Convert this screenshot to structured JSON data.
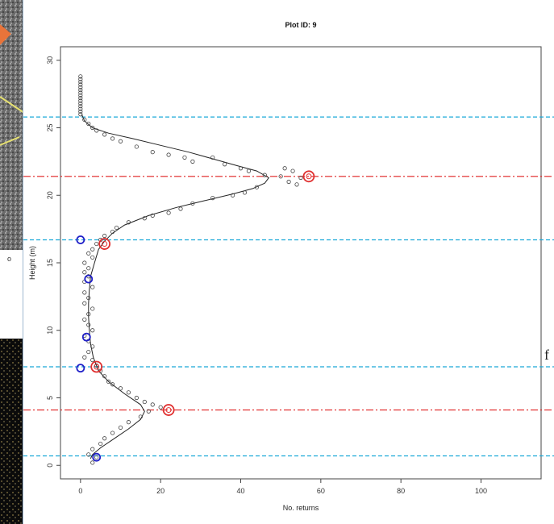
{
  "chart_data": {
    "type": "scatter",
    "title": "Plot ID: 9",
    "xlabel": "No. returns",
    "ylabel": "Height (m)",
    "xlim": [
      -5,
      115
    ],
    "ylim": [
      -1,
      31
    ],
    "xticks": [
      "0",
      "20",
      "40",
      "60",
      "80",
      "100"
    ],
    "yticks": [
      "0",
      "5",
      "10",
      "15",
      "20",
      "25",
      "30"
    ],
    "xtick_values": [
      0,
      20,
      40,
      60,
      80,
      100
    ],
    "ytick_values": [
      0,
      5,
      10,
      15,
      20,
      25,
      30
    ],
    "grid": false,
    "points": [
      [
        0,
        28.8
      ],
      [
        0,
        28.6
      ],
      [
        0,
        28.4
      ],
      [
        0,
        28.2
      ],
      [
        0,
        28.0
      ],
      [
        0,
        27.8
      ],
      [
        0,
        27.6
      ],
      [
        0,
        27.4
      ],
      [
        0,
        27.2
      ],
      [
        0,
        27.0
      ],
      [
        0,
        26.8
      ],
      [
        0,
        26.6
      ],
      [
        0,
        26.4
      ],
      [
        0,
        26.2
      ],
      [
        0,
        26.0
      ],
      [
        1,
        25.6
      ],
      [
        2,
        25.3
      ],
      [
        3,
        25.0
      ],
      [
        4,
        24.8
      ],
      [
        6,
        24.5
      ],
      [
        8,
        24.2
      ],
      [
        10,
        24.0
      ],
      [
        14,
        23.6
      ],
      [
        18,
        23.2
      ],
      [
        22,
        23.0
      ],
      [
        26,
        22.8
      ],
      [
        28,
        22.5
      ],
      [
        33,
        22.8
      ],
      [
        36,
        22.3
      ],
      [
        40,
        22.0
      ],
      [
        42,
        21.8
      ],
      [
        46,
        21.5
      ],
      [
        50,
        21.4
      ],
      [
        51,
        22.0
      ],
      [
        53,
        21.8
      ],
      [
        55,
        21.3
      ],
      [
        52,
        21.0
      ],
      [
        54,
        20.8
      ],
      [
        44,
        20.6
      ],
      [
        41,
        20.2
      ],
      [
        38,
        20.0
      ],
      [
        33,
        19.8
      ],
      [
        28,
        19.4
      ],
      [
        25,
        19.0
      ],
      [
        22,
        18.7
      ],
      [
        18,
        18.5
      ],
      [
        16,
        18.3
      ],
      [
        12,
        18.0
      ],
      [
        9,
        17.6
      ],
      [
        8,
        17.3
      ],
      [
        6,
        17.0
      ],
      [
        5,
        16.7
      ],
      [
        4,
        16.4
      ],
      [
        3,
        16.0
      ],
      [
        2,
        15.7
      ],
      [
        3,
        15.4
      ],
      [
        1,
        15.0
      ],
      [
        2,
        14.6
      ],
      [
        1,
        14.3
      ],
      [
        2,
        14.0
      ],
      [
        1,
        13.6
      ],
      [
        3,
        13.2
      ],
      [
        1,
        12.8
      ],
      [
        2,
        12.4
      ],
      [
        1,
        12.0
      ],
      [
        3,
        11.6
      ],
      [
        2,
        11.2
      ],
      [
        1,
        10.8
      ],
      [
        2,
        10.4
      ],
      [
        3,
        10.0
      ],
      [
        1,
        9.6
      ],
      [
        2,
        9.2
      ],
      [
        3,
        8.8
      ],
      [
        2,
        8.4
      ],
      [
        1,
        8.0
      ],
      [
        3,
        7.8
      ],
      [
        4,
        7.4
      ],
      [
        5,
        7.0
      ],
      [
        6,
        6.6
      ],
      [
        7,
        6.2
      ],
      [
        8,
        6.0
      ],
      [
        10,
        5.7
      ],
      [
        12,
        5.4
      ],
      [
        14,
        5.0
      ],
      [
        16,
        4.7
      ],
      [
        18,
        4.5
      ],
      [
        20,
        4.3
      ],
      [
        17,
        4.0
      ],
      [
        15,
        3.6
      ],
      [
        12,
        3.2
      ],
      [
        10,
        2.8
      ],
      [
        8,
        2.4
      ],
      [
        6,
        2.0
      ],
      [
        5,
        1.6
      ],
      [
        3,
        1.2
      ],
      [
        2,
        0.8
      ],
      [
        4,
        0.6
      ],
      [
        3,
        0.2
      ]
    ],
    "fit_curve": [
      [
        0.3,
        26.0
      ],
      [
        1,
        25.5
      ],
      [
        3,
        25.0
      ],
      [
        7,
        24.6
      ],
      [
        13,
        24.2
      ],
      [
        20,
        23.7
      ],
      [
        27,
        23.2
      ],
      [
        33,
        22.7
      ],
      [
        39,
        22.2
      ],
      [
        44,
        21.8
      ],
      [
        47,
        21.3
      ],
      [
        46,
        20.9
      ],
      [
        43,
        20.5
      ],
      [
        38,
        20.1
      ],
      [
        31,
        19.6
      ],
      [
        24,
        19.1
      ],
      [
        17,
        18.5
      ],
      [
        11,
        17.8
      ],
      [
        8,
        17.2
      ],
      [
        6,
        16.6
      ],
      [
        4.5,
        16.0
      ],
      [
        3.5,
        15.0
      ],
      [
        2.5,
        14.0
      ],
      [
        2.2,
        13.0
      ],
      [
        2.0,
        12.0
      ],
      [
        2.0,
        11.0
      ],
      [
        2.2,
        10.0
      ],
      [
        2.5,
        9.0
      ],
      [
        3.2,
        8.0
      ],
      [
        4.5,
        7.0
      ],
      [
        7,
        6.2
      ],
      [
        11,
        5.3
      ],
      [
        15,
        4.5
      ],
      [
        16,
        4.0
      ],
      [
        15,
        3.4
      ],
      [
        12,
        2.7
      ],
      [
        8,
        1.9
      ],
      [
        5,
        1.3
      ],
      [
        3,
        0.8
      ],
      [
        2.5,
        0.5
      ]
    ],
    "peaks": [
      [
        57,
        21.4
      ],
      [
        22,
        4.1
      ],
      [
        6,
        16.4
      ],
      [
        4,
        7.3
      ]
    ],
    "troughs": [
      [
        0,
        16.7
      ],
      [
        2,
        13.8
      ],
      [
        1.5,
        9.5
      ],
      [
        0,
        7.2
      ],
      [
        4,
        0.6
      ]
    ],
    "peak_lines": [
      21.4,
      4.1
    ],
    "boundary_lines": [
      25.8,
      16.7,
      7.3,
      0.7
    ],
    "colors": {
      "points": "#444444",
      "fit": "#222222",
      "peak_marker": "#e03030",
      "trough_marker": "#2020c8",
      "peak_line": "#e02020",
      "boundary_line": "#1aa8d8",
      "frame": "#444444"
    }
  },
  "side_fragments": {
    "left_label": "o",
    "right_label": "f"
  }
}
